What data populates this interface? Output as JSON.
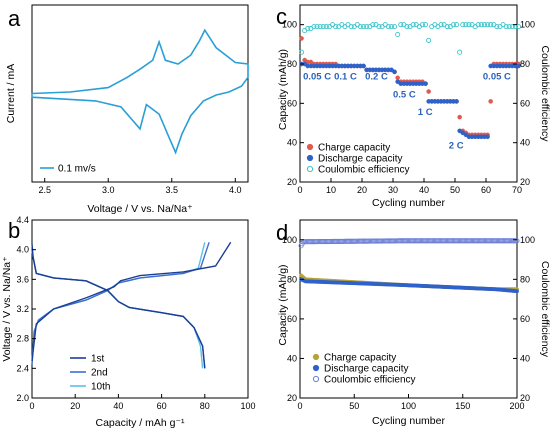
{
  "chart_data": [
    {
      "panel": "a",
      "type": "line",
      "xlabel": "Voltage / V vs. Na/Na⁺",
      "ylabel": "Current / mA",
      "xlim": [
        2.4,
        4.1
      ],
      "xticks": [
        2.5,
        3.0,
        3.5,
        4.0
      ],
      "yticks": [],
      "legend": [
        "0.1 mv/s"
      ],
      "legend_position": "bottom-left",
      "color": "#2a9fd6",
      "series": [
        {
          "name": "0.1 mv/s",
          "note": "closed cyclic voltammogram loop; y in relative current units",
          "x": [
            2.4,
            2.7,
            3.0,
            3.15,
            3.25,
            3.35,
            3.4,
            3.45,
            3.55,
            3.65,
            3.72,
            3.76,
            3.85,
            4.0,
            4.1,
            4.1,
            4.05,
            3.95,
            3.85,
            3.75,
            3.65,
            3.58,
            3.53,
            3.48,
            3.4,
            3.3,
            3.25,
            3.2,
            3.1,
            2.9,
            2.6,
            2.4
          ],
          "y": [
            0.1,
            0.12,
            0.18,
            0.32,
            0.43,
            0.55,
            0.8,
            0.55,
            0.5,
            0.62,
            0.82,
            0.96,
            0.72,
            0.52,
            0.5,
            0.32,
            0.2,
            0.12,
            0.08,
            0.0,
            -0.2,
            -0.45,
            -0.7,
            -0.5,
            -0.18,
            -0.05,
            -0.38,
            -0.28,
            -0.08,
            0.0,
            0.03,
            0.05
          ]
        }
      ]
    },
    {
      "panel": "b",
      "type": "line",
      "xlabel": "Capacity / mAh g⁻¹",
      "ylabel": "Voltage / V vs. Na/Na⁺",
      "xlim": [
        0,
        100
      ],
      "ylim": [
        2.0,
        4.4
      ],
      "xticks": [
        0,
        20,
        40,
        60,
        80,
        100
      ],
      "yticks": [
        2.0,
        2.4,
        2.8,
        3.2,
        3.6,
        4.0,
        4.4
      ],
      "legend_position": "bottom-right",
      "series": [
        {
          "name": "1st",
          "color": "#1c3f94",
          "charge": {
            "x": [
              0,
              2,
              10,
              25,
              38,
              41,
              50,
              70,
              85,
              92
            ],
            "y": [
              2.5,
              3.0,
              3.2,
              3.35,
              3.5,
              3.58,
              3.65,
              3.7,
              3.78,
              4.1
            ]
          },
          "discharge": {
            "x": [
              0,
              0.5,
              2,
              10,
              25,
              35,
              40,
              45,
              60,
              70,
              75,
              79,
              80
            ],
            "y": [
              4.08,
              3.9,
              3.68,
              3.62,
              3.58,
              3.45,
              3.3,
              3.22,
              3.15,
              3.1,
              2.95,
              2.7,
              2.4
            ]
          }
        },
        {
          "name": "2nd",
          "color": "#3d6fd0",
          "charge": {
            "x": [
              0,
              1,
              3,
              10,
              25,
              35,
              40,
              50,
              70,
              78,
              82
            ],
            "y": [
              2.45,
              2.9,
              3.05,
              3.2,
              3.32,
              3.45,
              3.55,
              3.62,
              3.68,
              3.75,
              4.1
            ]
          },
          "discharge": {
            "x": [
              0,
              0.5,
              2,
              10,
              25,
              35,
              40,
              45,
              60,
              70,
              75,
              79,
              80
            ],
            "y": [
              4.0,
              3.9,
              3.68,
              3.62,
              3.58,
              3.45,
              3.3,
              3.22,
              3.15,
              3.1,
              2.95,
              2.7,
              2.4
            ]
          }
        },
        {
          "name": "10th",
          "color": "#5bc0e8",
          "charge": {
            "x": [
              0,
              1,
              3,
              10,
              25,
              35,
              40,
              50,
              70,
              77,
              80
            ],
            "y": [
              2.45,
              2.9,
              3.05,
              3.2,
              3.32,
              3.45,
              3.55,
              3.62,
              3.68,
              3.75,
              4.1
            ]
          },
          "discharge": {
            "x": [
              0,
              0.5,
              2,
              10,
              25,
              35,
              40,
              45,
              60,
              70,
              75,
              78,
              79
            ],
            "y": [
              4.0,
              3.9,
              3.68,
              3.62,
              3.58,
              3.45,
              3.3,
              3.22,
              3.15,
              3.1,
              2.95,
              2.7,
              2.4
            ]
          }
        }
      ]
    },
    {
      "panel": "c",
      "type": "scatter",
      "xlabel": "Cycling number",
      "ylabel": "Capacity (mAh/g)",
      "y2label": "Coulombic efficiency",
      "xlim": [
        0,
        70
      ],
      "ylim": [
        20,
        110
      ],
      "y2lim": [
        20,
        110
      ],
      "xticks": [
        0,
        10,
        20,
        30,
        40,
        50,
        60,
        70
      ],
      "yticks": [
        20,
        40,
        60,
        80,
        100
      ],
      "legend_position": "bottom-left",
      "rate_labels": [
        "0.05 C",
        "0.1 C",
        "0.2 C",
        "0.5 C",
        "1 C",
        "2 C",
        "0.05 C"
      ],
      "series": [
        {
          "name": "Charge capacity",
          "color": "#e05a4f",
          "values": [
            93,
            82,
            81,
            81,
            80,
            80,
            80,
            80,
            80,
            80,
            80,
            80,
            79,
            79,
            79,
            79,
            79,
            79,
            79,
            79,
            79,
            77,
            77,
            77,
            77,
            77,
            77,
            77,
            77,
            77,
            76,
            73,
            71,
            71,
            71,
            71,
            71,
            71,
            71,
            71,
            70,
            66,
            61,
            61,
            61,
            61,
            61,
            61,
            61,
            61,
            61,
            53,
            46,
            45,
            44,
            44,
            44,
            44,
            44,
            44,
            44,
            61,
            80,
            80,
            80,
            80,
            80,
            80,
            80,
            80,
            80
          ]
        },
        {
          "name": "Discharge capacity",
          "color": "#2f62c9",
          "values": [
            80,
            80,
            79,
            79,
            79,
            79,
            79,
            79,
            79,
            79,
            79,
            79,
            79,
            79,
            79,
            79,
            79,
            79,
            79,
            79,
            79,
            77,
            77,
            77,
            77,
            77,
            77,
            77,
            77,
            77,
            76,
            71,
            70,
            70,
            70,
            70,
            70,
            70,
            70,
            70,
            70,
            61,
            61,
            61,
            61,
            61,
            61,
            61,
            61,
            61,
            61,
            46,
            45,
            44,
            43,
            43,
            43,
            43,
            43,
            43,
            43,
            79,
            79,
            79,
            79,
            79,
            79,
            79,
            79,
            79,
            79
          ]
        },
        {
          "name": "Coulombic efficiency",
          "color": "#3bc4c9",
          "values": [
            86,
            97,
            98,
            98,
            99,
            99,
            99,
            99,
            99,
            99,
            100,
            99,
            99,
            100,
            99,
            100,
            99,
            99,
            100,
            99,
            99,
            99,
            99,
            100,
            100,
            99,
            99,
            100,
            99,
            99,
            99,
            95,
            100,
            100,
            99,
            99,
            100,
            100,
            99,
            100,
            100,
            92,
            99,
            100,
            99,
            100,
            100,
            99,
            99,
            100,
            100,
            86,
            100,
            100,
            100,
            100,
            99,
            100,
            100,
            100,
            100,
            100,
            100,
            99,
            99,
            100,
            99,
            99,
            99,
            99,
            99
          ]
        }
      ]
    },
    {
      "panel": "d",
      "type": "scatter",
      "xlabel": "Cycling number",
      "ylabel": "Capacity (mAh/g)",
      "y2label": "Coulombic efficiency",
      "xlim": [
        0,
        200
      ],
      "ylim": [
        20,
        110
      ],
      "y2lim": [
        20,
        110
      ],
      "xticks": [
        0,
        50,
        100,
        150,
        200
      ],
      "yticks": [
        20,
        40,
        60,
        80,
        100
      ],
      "legend_position": "bottom-left",
      "series": [
        {
          "name": "Charge capacity",
          "color": "#b5a33a",
          "trend": {
            "x": [
              1,
              5,
              100,
              180,
              200
            ],
            "y": [
              82,
              80,
              77,
              75,
              75
            ]
          }
        },
        {
          "name": "Discharge capacity",
          "color": "#2f62c9",
          "trend": {
            "x": [
              1,
              5,
              100,
              180,
              200
            ],
            "y": [
              80,
              79,
              77,
              75,
              74
            ]
          }
        },
        {
          "name": "Coulombic efficiency",
          "color": "#6b7fd6",
          "trend": {
            "x": [
              1,
              3,
              100,
              200
            ],
            "y": [
              97,
              99,
              99.5,
              99.5
            ]
          }
        }
      ]
    }
  ],
  "panel_letters": [
    "a",
    "b",
    "c",
    "d"
  ]
}
